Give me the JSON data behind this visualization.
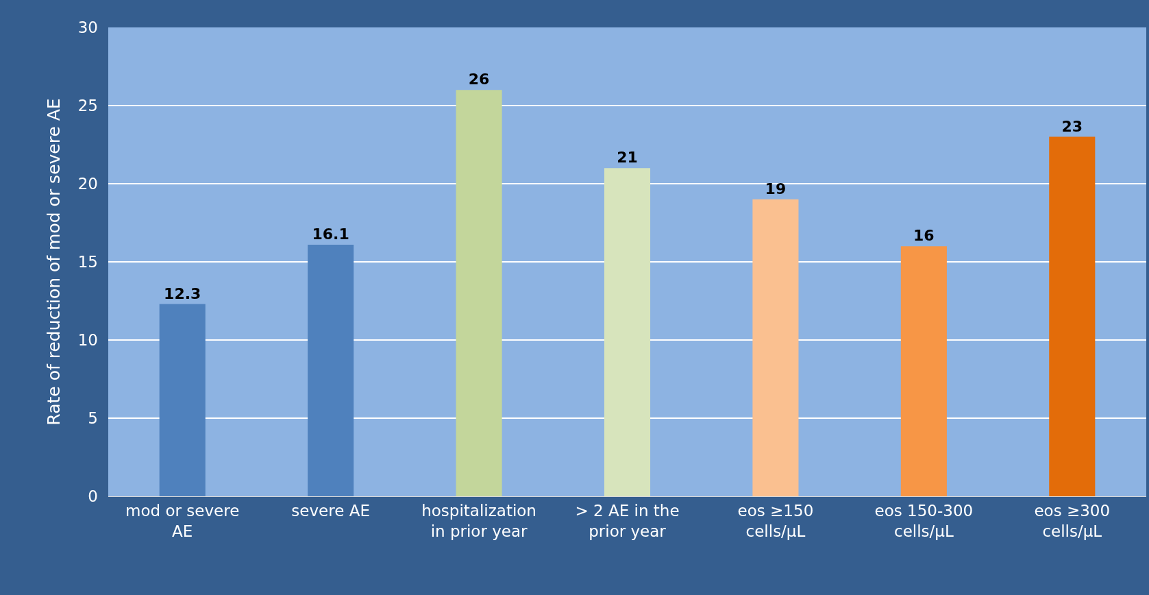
{
  "chart_data": {
    "type": "bar",
    "ylabel": "Rate of reduction of mod or severe AE",
    "categories": [
      "mod or severe AE",
      "severe AE",
      "hospitalization in prior year",
      "> 2 AE in the prior year",
      "eos ≥150 cells/μL",
      "eos 150-300 cells/μL",
      "eos ≥300 cells/μL"
    ],
    "values": [
      12.3,
      16.1,
      26,
      21,
      19,
      16,
      23
    ],
    "colors": [
      "#4f81bd",
      "#4f81bd",
      "#c3d69b",
      "#d7e4bc",
      "#fac090",
      "#f79646",
      "#e36c09"
    ],
    "ylim": [
      0,
      30
    ],
    "yticks": [
      0,
      5,
      10,
      15,
      20,
      25,
      30
    ],
    "grid": "y",
    "data_labels": true
  }
}
